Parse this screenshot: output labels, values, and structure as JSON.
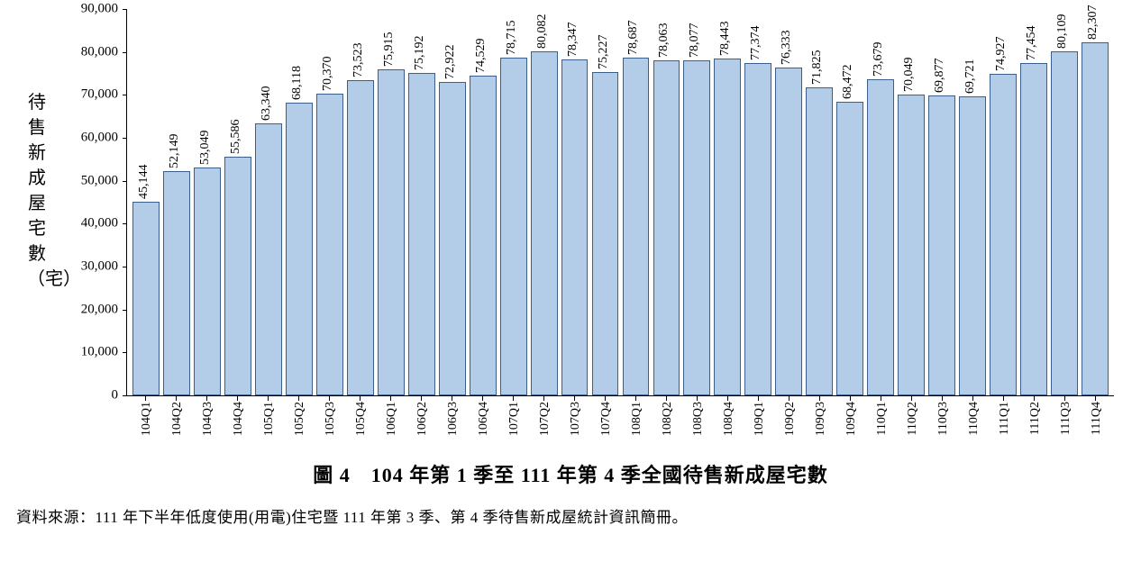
{
  "chart": {
    "type": "bar",
    "title": "圖 4　104 年第 1 季至 111 年第 4 季全國待售新成屋宅數",
    "y_axis_label": "待售新成屋宅數（宅）",
    "source": "資料來源：111 年下半年低度使用(用電)住宅暨 111 年第 3 季、第 4 季待售新成屋統計資訊簡冊。",
    "ylim": [
      0,
      90000
    ],
    "ytick_step": 10000,
    "yticks": [
      "0",
      "10,000",
      "20,000",
      "30,000",
      "40,000",
      "50,000",
      "60,000",
      "70,000",
      "80,000",
      "90,000"
    ],
    "categories": [
      "104Q1",
      "104Q2",
      "104Q3",
      "104Q4",
      "105Q1",
      "105Q2",
      "105Q3",
      "105Q4",
      "106Q1",
      "106Q2",
      "106Q3",
      "106Q4",
      "107Q1",
      "107Q2",
      "107Q3",
      "107Q4",
      "108Q1",
      "108Q2",
      "108Q3",
      "108Q4",
      "109Q1",
      "109Q2",
      "109Q3",
      "109Q4",
      "110Q1",
      "110Q2",
      "110Q3",
      "110Q4",
      "111Q1",
      "111Q2",
      "111Q3",
      "111Q4"
    ],
    "values": [
      45144,
      52149,
      53049,
      55586,
      63340,
      68118,
      70370,
      73523,
      75915,
      75192,
      72922,
      74529,
      78715,
      80082,
      78347,
      75227,
      78687,
      78063,
      78077,
      78443,
      77374,
      76333,
      71825,
      68472,
      73679,
      70049,
      69877,
      69721,
      74927,
      77454,
      80109,
      82307
    ],
    "value_labels": [
      "45,144",
      "52,149",
      "53,049",
      "55,586",
      "63,340",
      "68,118",
      "70,370",
      "73,523",
      "75,915",
      "75,192",
      "72,922",
      "74,529",
      "78,715",
      "80,082",
      "78,347",
      "75,227",
      "78,687",
      "78,063",
      "78,077",
      "78,443",
      "77,374",
      "76,333",
      "71,825",
      "68,472",
      "73,679",
      "70,049",
      "69,877",
      "69,721",
      "74,927",
      "77,454",
      "80,109",
      "82,307"
    ],
    "bar_fill": "#b3cde8",
    "bar_border": "#3a5f8a",
    "background_color": "#ffffff",
    "title_fontsize": 22,
    "label_fontsize": 14,
    "axis_fontsize": 15,
    "bar_width_ratio": 0.88
  }
}
